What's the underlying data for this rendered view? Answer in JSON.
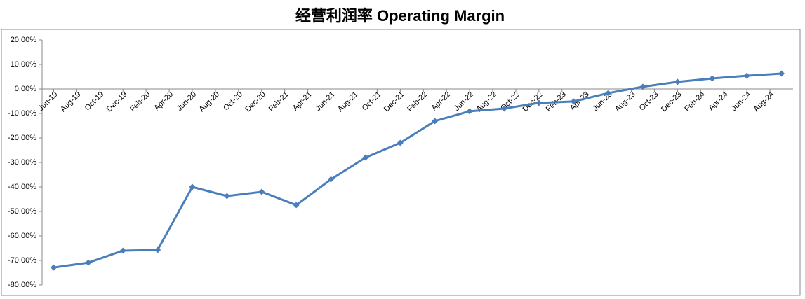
{
  "chart_data": {
    "type": "line",
    "title": "经营利润率 Operating Margin",
    "x": [
      "2019-06",
      "2019-09",
      "2019-12",
      "2020-03",
      "2020-06",
      "2020-09",
      "2020-12",
      "2021-03",
      "2021-06",
      "2021-09",
      "2021-12",
      "2022-03",
      "2022-06",
      "2022-09",
      "2022-12",
      "2023-03",
      "2023-06",
      "2023-09",
      "2023-12",
      "2024-03",
      "2024-06",
      "2024-09"
    ],
    "series": [
      {
        "color": "#4a7ebb",
        "values": [
          -72.9,
          -70.9,
          -66.0,
          -65.7,
          -40.0,
          -43.7,
          -42.0,
          -47.4,
          -36.9,
          -28.0,
          -22.0,
          -13.1,
          -9.1,
          -8.0,
          -5.7,
          -5.1,
          -1.7,
          0.9,
          2.9,
          4.3,
          5.4,
          6.3
        ]
      }
    ],
    "xlim": [
      "2019-05",
      "2024-10"
    ],
    "xticks": [
      {
        "value": "2019-06",
        "label": "Jun-19"
      },
      {
        "value": "2019-08",
        "label": "Aug-19"
      },
      {
        "value": "2019-10",
        "label": "Oct-19"
      },
      {
        "value": "2019-12",
        "label": "Dec-19"
      },
      {
        "value": "2020-02",
        "label": "Feb-20"
      },
      {
        "value": "2020-04",
        "label": "Apr-20"
      },
      {
        "value": "2020-06",
        "label": "Jun-20"
      },
      {
        "value": "2020-08",
        "label": "Aug-20"
      },
      {
        "value": "2020-10",
        "label": "Oct-20"
      },
      {
        "value": "2020-12",
        "label": "Dec-20"
      },
      {
        "value": "2021-02",
        "label": "Feb-21"
      },
      {
        "value": "2021-04",
        "label": "Apr-21"
      },
      {
        "value": "2021-06",
        "label": "Jun-21"
      },
      {
        "value": "2021-08",
        "label": "Aug-21"
      },
      {
        "value": "2021-10",
        "label": "Oct-21"
      },
      {
        "value": "2021-12",
        "label": "Dec-21"
      },
      {
        "value": "2022-02",
        "label": "Feb-22"
      },
      {
        "value": "2022-04",
        "label": "Apr-22"
      },
      {
        "value": "2022-06",
        "label": "Jun-22"
      },
      {
        "value": "2022-08",
        "label": "Aug-22"
      },
      {
        "value": "2022-10",
        "label": "Oct-22"
      },
      {
        "value": "2022-12",
        "label": "Dec-22"
      },
      {
        "value": "2023-02",
        "label": "Feb-23"
      },
      {
        "value": "2023-04",
        "label": "Apr-23"
      },
      {
        "value": "2023-06",
        "label": "Jun-23"
      },
      {
        "value": "2023-08",
        "label": "Aug-23"
      },
      {
        "value": "2023-10",
        "label": "Oct-23"
      },
      {
        "value": "2023-12",
        "label": "Dec-23"
      },
      {
        "value": "2024-02",
        "label": "Feb-24"
      },
      {
        "value": "2024-04",
        "label": "Apr-24"
      },
      {
        "value": "2024-06",
        "label": "Jun-24"
      },
      {
        "value": "2024-08",
        "label": "Aug-24"
      }
    ],
    "ylim": [
      -80,
      20
    ],
    "yticks": [
      {
        "value": 20,
        "label": "20.00%"
      },
      {
        "value": 10,
        "label": "10.00%"
      },
      {
        "value": 0,
        "label": "0.00%"
      },
      {
        "value": -10,
        "label": "-10.00%"
      },
      {
        "value": -20,
        "label": "-20.00%"
      },
      {
        "value": -30,
        "label": "-30.00%"
      },
      {
        "value": -40,
        "label": "-40.00%"
      },
      {
        "value": -50,
        "label": "-50.00%"
      },
      {
        "value": -60,
        "label": "-60.00%"
      },
      {
        "value": -70,
        "label": "-70.00%"
      },
      {
        "value": -80,
        "label": "-80.00%"
      }
    ],
    "grid": false
  }
}
